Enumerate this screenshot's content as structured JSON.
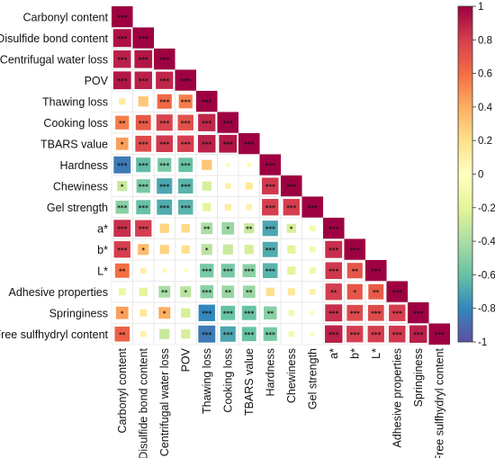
{
  "chart_data": {
    "type": "heatmap",
    "title": "",
    "variables": [
      "Carbonyl content",
      "Disulfide bond content",
      "Centrifugal water loss",
      "POV",
      "Thawing loss",
      "Cooking loss",
      "TBARS value",
      "Hardness",
      "Chewiness",
      "Gel strength",
      "a*",
      "b*",
      "L*",
      "Adhesive properties",
      "Springiness",
      "Free sulfhydryl content"
    ],
    "matrix": [
      [
        1.0
      ],
      [
        0.95,
        1.0
      ],
      [
        0.9,
        0.93,
        1.0
      ],
      [
        0.93,
        0.9,
        0.88,
        1.0
      ],
      [
        0.12,
        0.3,
        0.62,
        0.55,
        1.0
      ],
      [
        0.55,
        0.68,
        0.78,
        0.72,
        0.88,
        1.0
      ],
      [
        0.45,
        0.75,
        0.82,
        0.8,
        0.9,
        0.93,
        1.0
      ],
      [
        -0.85,
        -0.62,
        -0.55,
        -0.6,
        0.3,
        0.03,
        0.05,
        1.0
      ],
      [
        -0.3,
        -0.55,
        -0.7,
        -0.65,
        -0.25,
        0.1,
        0.15,
        0.82,
        1.0
      ],
      [
        -0.5,
        -0.6,
        -0.68,
        -0.65,
        -0.2,
        0.12,
        0.1,
        0.8,
        0.8,
        1.0
      ],
      [
        0.85,
        0.8,
        0.25,
        0.22,
        -0.4,
        -0.45,
        -0.3,
        -0.7,
        -0.25,
        -0.1,
        1.0
      ],
      [
        0.8,
        0.35,
        0.25,
        0.2,
        -0.35,
        -0.3,
        -0.25,
        -0.68,
        -0.2,
        -0.1,
        0.85,
        1.0
      ],
      [
        0.6,
        0.1,
        0.05,
        0.02,
        -0.55,
        -0.55,
        -0.5,
        -0.65,
        -0.2,
        -0.12,
        0.82,
        0.7,
        1.0
      ],
      [
        -0.15,
        -0.2,
        -0.4,
        -0.35,
        -0.5,
        -0.45,
        -0.45,
        0.2,
        0.15,
        0.1,
        0.8,
        0.7,
        0.68,
        1.0
      ],
      [
        0.45,
        0.15,
        0.4,
        -0.25,
        -0.8,
        -0.6,
        -0.6,
        -0.5,
        -0.1,
        -0.05,
        0.85,
        0.75,
        0.75,
        0.8,
        1.0
      ],
      [
        0.65,
        0.1,
        -0.3,
        -0.25,
        -0.85,
        -0.7,
        -0.6,
        -0.55,
        -0.1,
        -0.05,
        0.9,
        0.8,
        0.8,
        0.82,
        0.9,
        1.0
      ]
    ],
    "significance": [
      [
        "***"
      ],
      [
        "***",
        "***"
      ],
      [
        "***",
        "***",
        "***"
      ],
      [
        "***",
        "***",
        "***",
        "***"
      ],
      [
        "",
        "",
        "***",
        "***",
        "***"
      ],
      [
        "**",
        "***",
        "***",
        "***",
        "***",
        "***"
      ],
      [
        "*",
        "***",
        "***",
        "***",
        "***",
        "***",
        "***"
      ],
      [
        "***",
        "***",
        "***",
        "***",
        "",
        "",
        "",
        "***"
      ],
      [
        "*",
        "***",
        "***",
        "***",
        "",
        "",
        "",
        "***",
        "***"
      ],
      [
        "***",
        "***",
        "***",
        "***",
        "",
        "",
        "",
        "***",
        "***",
        "***"
      ],
      [
        "***",
        "***",
        "",
        "",
        "**",
        "*",
        "**",
        "***",
        "*",
        "",
        "***"
      ],
      [
        "***",
        "*",
        "",
        "",
        "*",
        "",
        "",
        "***",
        "",
        "",
        "***",
        "***"
      ],
      [
        "**",
        "",
        "",
        "",
        "***",
        "***",
        "***",
        "***",
        "",
        "",
        "***",
        "**",
        "***"
      ],
      [
        "",
        "",
        "**",
        "*",
        "***",
        "**",
        "**",
        "",
        "",
        "",
        "**",
        "*",
        "**",
        "***"
      ],
      [
        "*",
        "",
        "*",
        "",
        "***",
        "***",
        "***",
        "**",
        "",
        "",
        "***",
        "***",
        "***",
        "***",
        "***"
      ],
      [
        "**",
        "",
        "",
        "",
        "***",
        "***",
        "***",
        "***",
        "",
        "",
        "***",
        "***",
        "***",
        "***",
        "***",
        "***"
      ]
    ],
    "colorbar": {
      "range": [
        -1,
        1
      ],
      "ticks": [
        "1",
        "0.8",
        "0.6",
        "0.4",
        "0.2",
        "0",
        "-0.2",
        "-0.4",
        "-0.6",
        "-0.8",
        "-1"
      ],
      "colors": [
        "#5e4fa2",
        "#3288bd",
        "#66c2a5",
        "#abdda4",
        "#e6f598",
        "#ffffbf",
        "#fee08b",
        "#fdae61",
        "#f46d43",
        "#d53e4f",
        "#9e0142"
      ]
    }
  }
}
